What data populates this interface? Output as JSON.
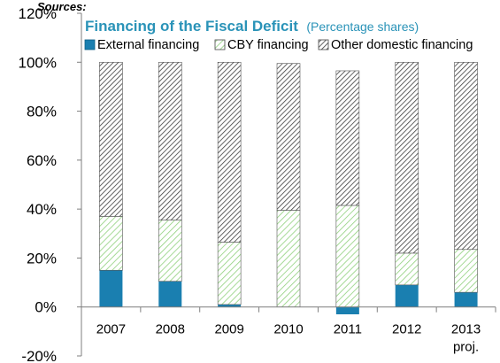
{
  "source_note": "Sources:",
  "chart_data": {
    "type": "bar",
    "stacked": true,
    "title": "Financing of the Fiscal Deficit",
    "subtitle": "(Percentage shares)",
    "categories": [
      "2007",
      "2008",
      "2009",
      "2010",
      "2011",
      "2012",
      "2013"
    ],
    "category_sublabels": [
      "",
      "",
      "",
      "",
      "",
      "",
      "proj."
    ],
    "ylim": [
      -20,
      120
    ],
    "yticks": [
      "-20%",
      "0%",
      "20%",
      "40%",
      "60%",
      "80%",
      "100%",
      "120%"
    ],
    "ytick_values": [
      -20,
      0,
      20,
      40,
      60,
      80,
      100,
      120
    ],
    "grid": false,
    "legend_position": "top",
    "series": [
      {
        "name": "External financing",
        "values": [
          15,
          10.5,
          1,
          0,
          -3,
          9,
          6
        ],
        "color": "#1a7fb0",
        "pattern": "solid"
      },
      {
        "name": "CBY financing",
        "values": [
          22,
          25,
          25.5,
          39.5,
          41.5,
          13,
          17.5
        ],
        "color": "#7cc46a",
        "pattern": "diagonal-light"
      },
      {
        "name": "Other domestic financing",
        "values": [
          63,
          64.5,
          73.5,
          60,
          55,
          78,
          76.5
        ],
        "color": "#333333",
        "pattern": "diagonal-dense"
      }
    ]
  }
}
